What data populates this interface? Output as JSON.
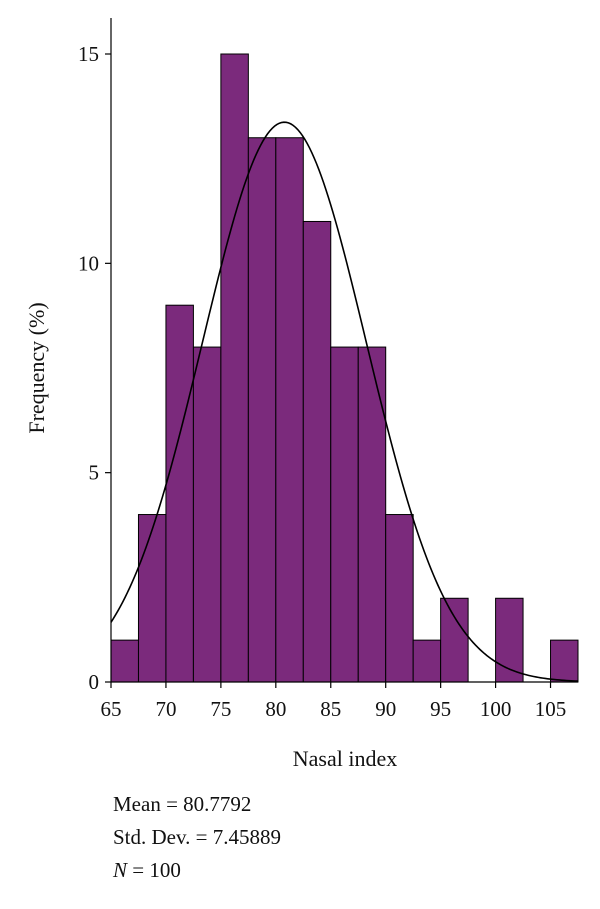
{
  "chart_data": {
    "type": "bar",
    "subtype": "histogram",
    "xlabel": "Nasal index",
    "ylabel": "Frequency (%)",
    "x_ticks": [
      65,
      70,
      75,
      80,
      85,
      90,
      95,
      100,
      105
    ],
    "y_ticks": [
      0,
      5,
      10,
      15
    ],
    "xlim": [
      65,
      107.5
    ],
    "ylim": [
      0,
      15.5
    ],
    "bin_width": 2.5,
    "bins": [
      {
        "start": 65.0,
        "end": 67.5,
        "value": 1
      },
      {
        "start": 67.5,
        "end": 70.0,
        "value": 4
      },
      {
        "start": 70.0,
        "end": 72.5,
        "value": 9
      },
      {
        "start": 72.5,
        "end": 75.0,
        "value": 8
      },
      {
        "start": 75.0,
        "end": 77.5,
        "value": 15
      },
      {
        "start": 77.5,
        "end": 80.0,
        "value": 13
      },
      {
        "start": 80.0,
        "end": 82.5,
        "value": 13
      },
      {
        "start": 82.5,
        "end": 85.0,
        "value": 11
      },
      {
        "start": 85.0,
        "end": 87.5,
        "value": 8
      },
      {
        "start": 87.5,
        "end": 90.0,
        "value": 8
      },
      {
        "start": 90.0,
        "end": 92.5,
        "value": 4
      },
      {
        "start": 92.5,
        "end": 95.0,
        "value": 1
      },
      {
        "start": 95.0,
        "end": 97.5,
        "value": 2
      },
      {
        "start": 97.5,
        "end": 100.0,
        "value": 0
      },
      {
        "start": 100.0,
        "end": 102.5,
        "value": 2
      },
      {
        "start": 102.5,
        "end": 105.0,
        "value": 0
      },
      {
        "start": 105.0,
        "end": 107.5,
        "value": 1
      }
    ],
    "normal_curve": {
      "mean": 80.7792,
      "std": 7.45889,
      "n": 100
    },
    "bar_color": "#7b2a7c",
    "grid": false,
    "legend": "none"
  },
  "stats": {
    "mean_text": "Mean = 80.7792",
    "std_text": "Std. Dev. = 7.45889",
    "n_label": "N",
    "n_text": " = 100"
  }
}
